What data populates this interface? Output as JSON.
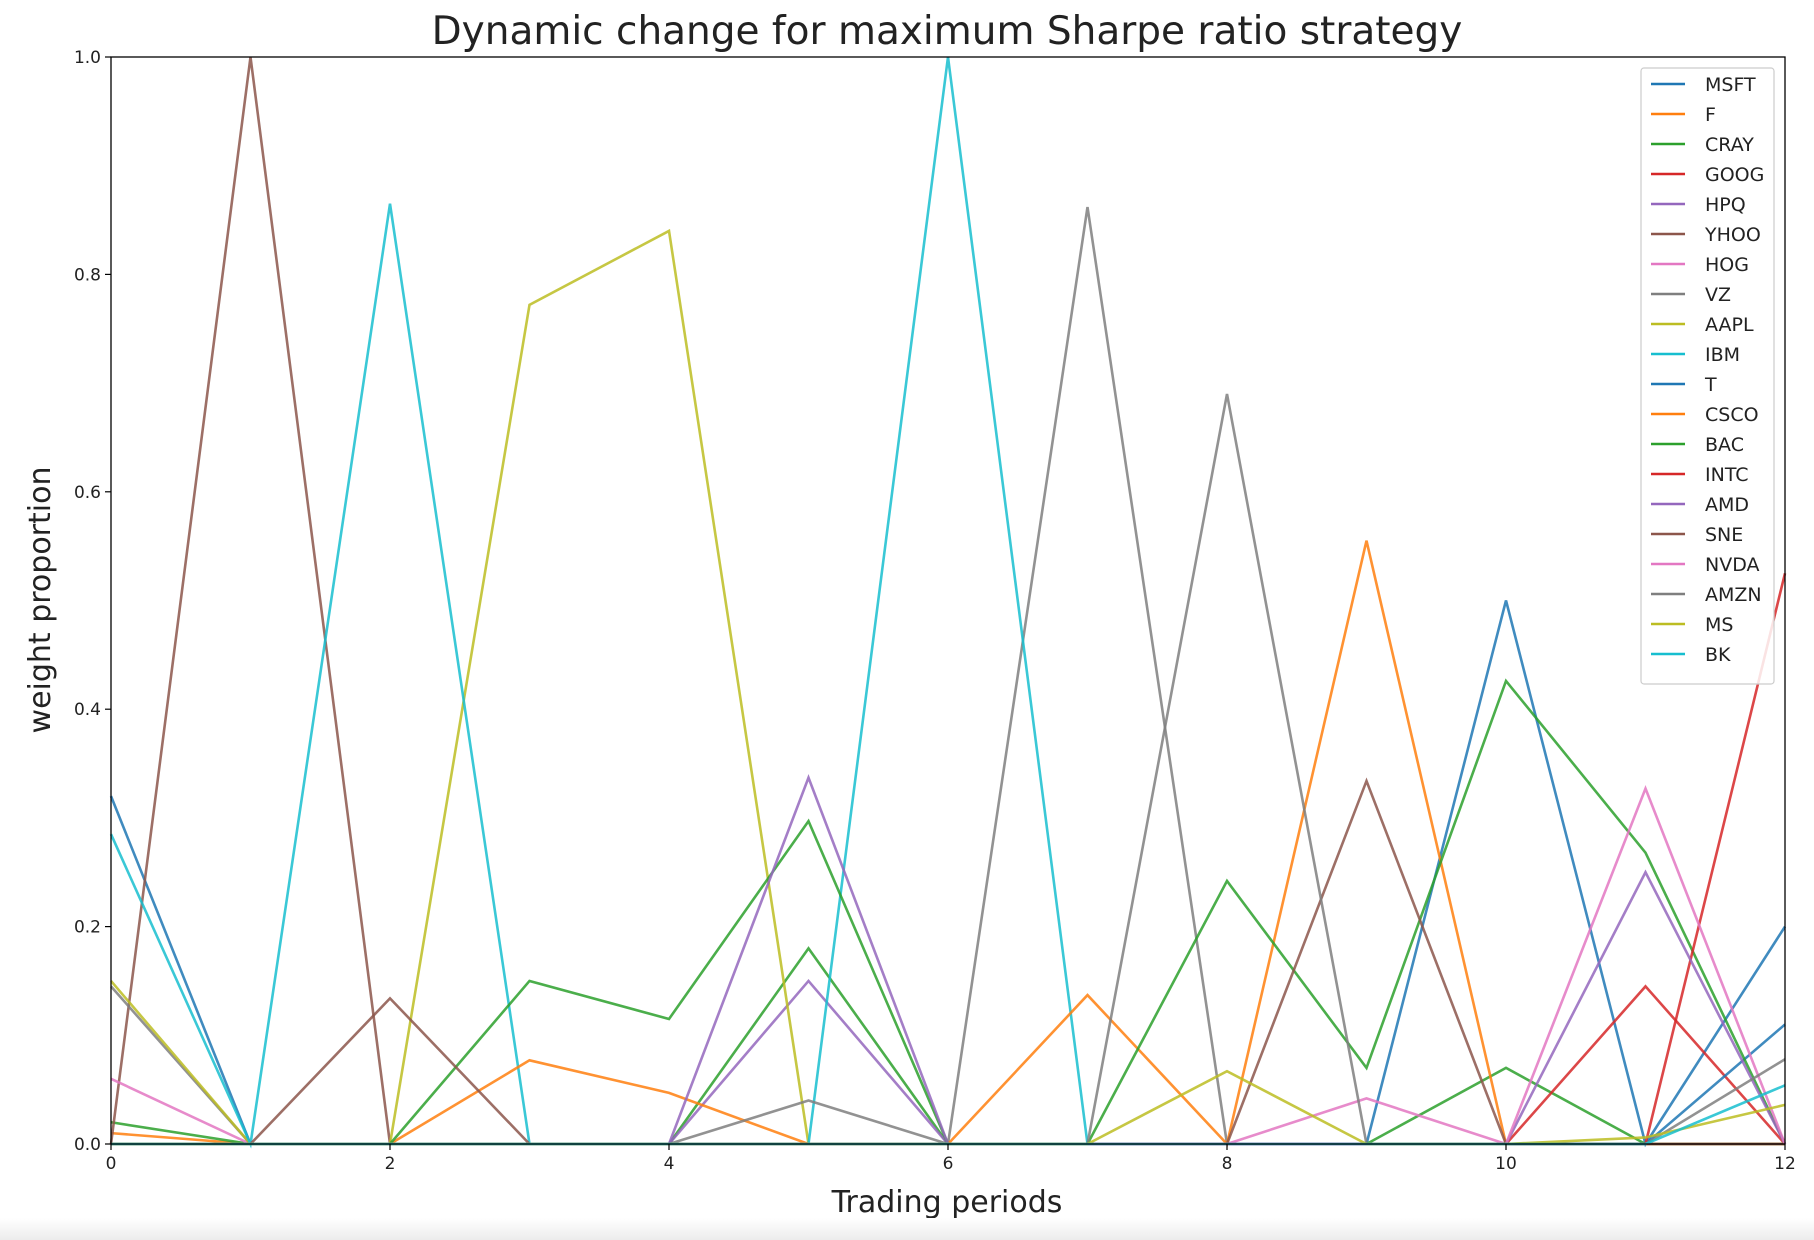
{
  "chart_data": {
    "type": "line",
    "title": "Dynamic change for maximum Sharpe ratio strategy",
    "xlabel": "Trading periods",
    "ylabel": "weight proportion",
    "xlim": [
      0,
      12
    ],
    "ylim": [
      0,
      1
    ],
    "xticks": [
      0,
      2,
      4,
      6,
      8,
      10,
      12
    ],
    "yticks": [
      0.0,
      0.2,
      0.4,
      0.6,
      0.8,
      1.0
    ],
    "xtick_labels": [
      "0",
      "2",
      "4",
      "6",
      "8",
      "10",
      "12"
    ],
    "ytick_labels": [
      "0.0",
      "0.2",
      "0.4",
      "0.6",
      "0.8",
      "1.0"
    ],
    "grid": false,
    "legend_position": "top-right",
    "x": [
      0,
      1,
      2,
      3,
      4,
      5,
      6,
      7,
      8,
      9,
      10,
      11,
      12
    ],
    "series": [
      {
        "name": "MSFT",
        "color": "#1f77b4",
        "values": [
          0.32,
          0,
          0,
          0,
          0,
          0,
          0,
          0,
          0,
          0,
          0.5,
          0,
          0.2
        ]
      },
      {
        "name": "F",
        "color": "#ff7f0e",
        "values": [
          0.01,
          0,
          0,
          0,
          0,
          0,
          0,
          0,
          0,
          0,
          0,
          0,
          0
        ]
      },
      {
        "name": "CRAY",
        "color": "#2ca02c",
        "values": [
          0.02,
          0,
          0,
          0,
          0,
          0.18,
          0,
          0,
          0,
          0,
          0.07,
          0,
          0
        ]
      },
      {
        "name": "GOOG",
        "color": "#d62728",
        "values": [
          0,
          0,
          0,
          0,
          0,
          0,
          0,
          0,
          0,
          0,
          0,
          0.145,
          0
        ]
      },
      {
        "name": "HPQ",
        "color": "#9467bd",
        "values": [
          0,
          0,
          0,
          0,
          0,
          0.15,
          0,
          0,
          0,
          0,
          0,
          0,
          0
        ]
      },
      {
        "name": "YHOO",
        "color": "#8c564b",
        "values": [
          0,
          1.0,
          0,
          0,
          0,
          0,
          0,
          0,
          0,
          0,
          0,
          0,
          0
        ]
      },
      {
        "name": "HOG",
        "color": "#e377c2",
        "values": [
          0.06,
          0,
          0,
          0,
          0,
          0,
          0,
          0,
          0,
          0.042,
          0,
          0,
          0
        ]
      },
      {
        "name": "VZ",
        "color": "#7f7f7f",
        "values": [
          0.145,
          0,
          0,
          0,
          0,
          0,
          0,
          0.862,
          0,
          0,
          0,
          0,
          0
        ]
      },
      {
        "name": "AAPL",
        "color": "#bcbd22",
        "values": [
          0.15,
          0,
          0,
          0.772,
          0.84,
          0,
          0,
          0,
          0,
          0,
          0,
          0,
          0
        ]
      },
      {
        "name": "IBM",
        "color": "#17becf",
        "values": [
          0.285,
          0,
          0.865,
          0,
          0,
          0,
          1.0,
          0,
          0,
          0,
          0,
          0,
          0
        ]
      },
      {
        "name": "T",
        "color": "#1f77b4",
        "values": [
          0,
          0,
          0,
          0,
          0,
          0,
          0,
          0,
          0,
          0,
          0,
          0,
          0.11
        ]
      },
      {
        "name": "CSCO",
        "color": "#ff7f0e",
        "values": [
          0,
          0,
          0,
          0.077,
          0.047,
          0,
          0,
          0.137,
          0,
          0.555,
          0,
          0,
          0
        ]
      },
      {
        "name": "BAC",
        "color": "#2ca02c",
        "values": [
          0,
          0,
          0,
          0.15,
          0.115,
          0.297,
          0,
          0,
          0.242,
          0.07,
          0.426,
          0.268,
          0
        ]
      },
      {
        "name": "INTC",
        "color": "#d62728",
        "values": [
          0,
          0,
          0,
          0,
          0,
          0,
          0,
          0,
          0,
          0,
          0,
          0,
          0.525
        ]
      },
      {
        "name": "AMD",
        "color": "#9467bd",
        "values": [
          0,
          0,
          0,
          0,
          0,
          0.337,
          0,
          0,
          0,
          0,
          0,
          0.25,
          0
        ]
      },
      {
        "name": "SNE",
        "color": "#8c564b",
        "values": [
          0,
          0,
          0.134,
          0,
          0,
          0,
          0,
          0,
          0,
          0.334,
          0,
          0,
          0
        ]
      },
      {
        "name": "NVDA",
        "color": "#e377c2",
        "values": [
          0,
          0,
          0,
          0,
          0,
          0,
          0,
          0,
          0,
          0,
          0,
          0.327,
          0
        ]
      },
      {
        "name": "AMZN",
        "color": "#7f7f7f",
        "values": [
          0,
          0,
          0,
          0,
          0,
          0.04,
          0,
          0,
          0.69,
          0,
          0,
          0,
          0.078
        ]
      },
      {
        "name": "MS",
        "color": "#bcbd22",
        "values": [
          0,
          0,
          0,
          0,
          0,
          0,
          0,
          0,
          0.067,
          0,
          0,
          0.006,
          0.036
        ]
      },
      {
        "name": "BK",
        "color": "#17becf",
        "values": [
          0,
          0,
          0,
          0,
          0,
          0,
          0,
          0,
          0,
          0,
          0,
          0,
          0.054
        ]
      }
    ]
  }
}
